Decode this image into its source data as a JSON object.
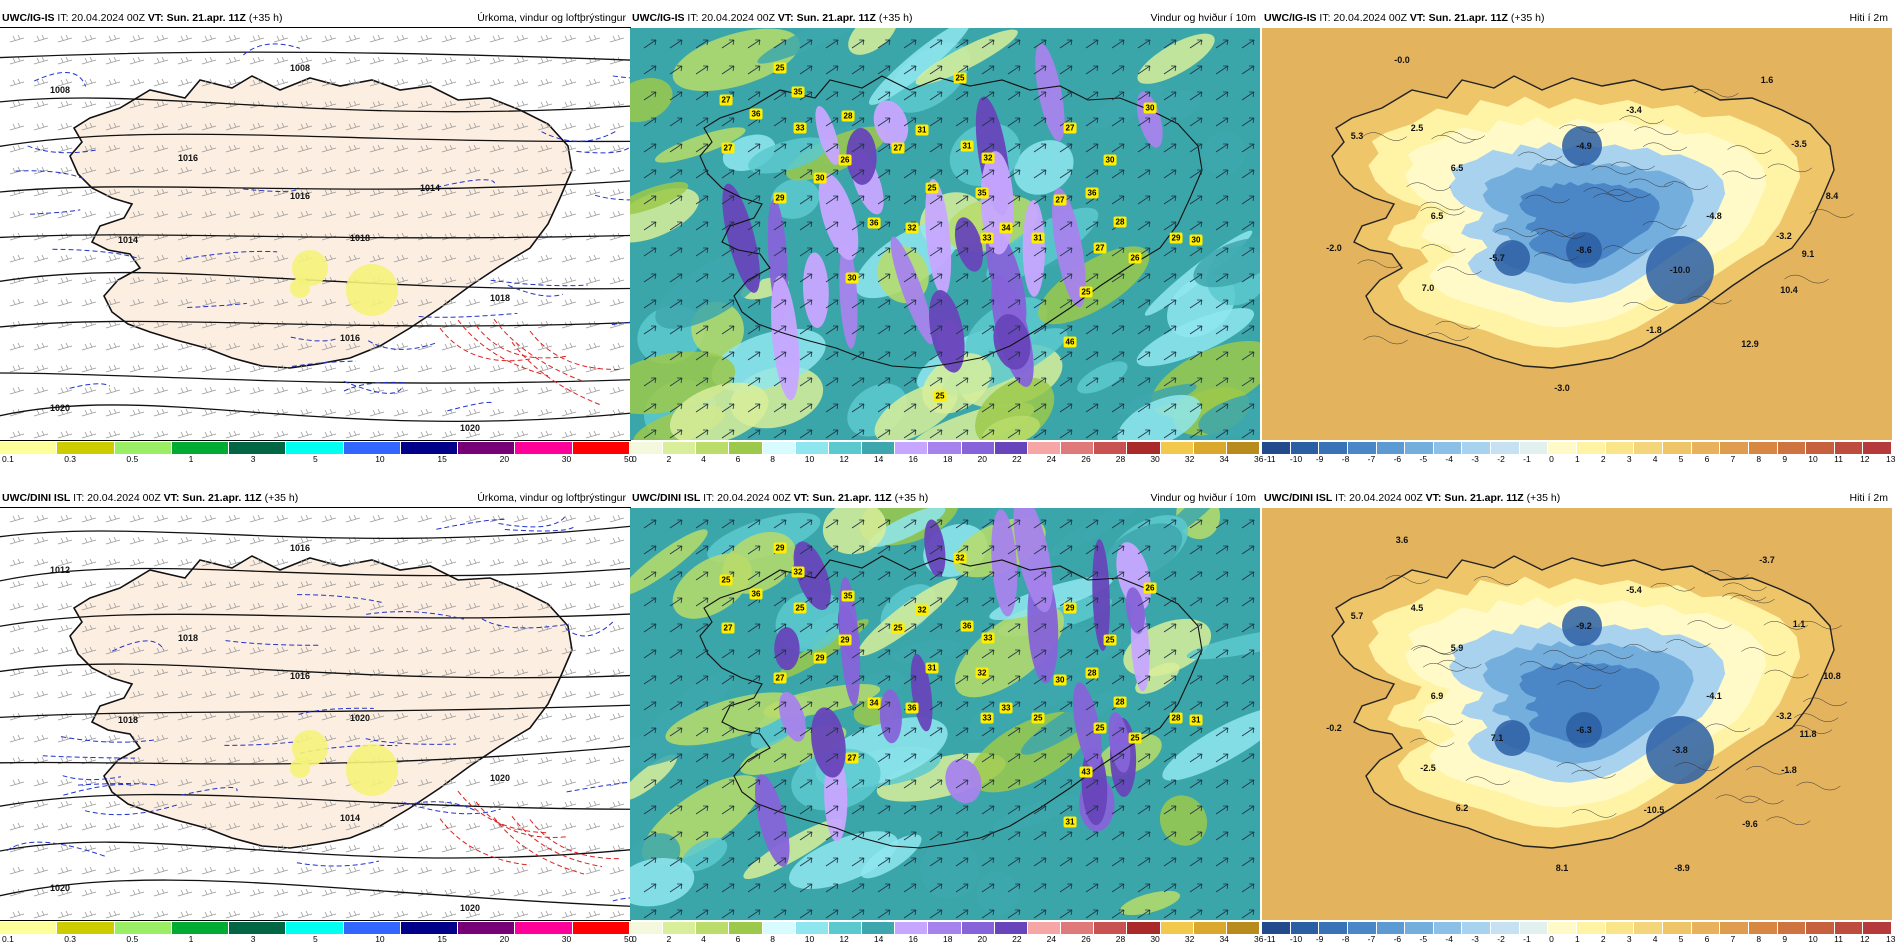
{
  "panels": [
    {
      "id": "p1",
      "model": "UWC/IG-IS",
      "it": "IT: 20.04.2024 00Z",
      "vt_label": "VT:",
      "vt": "Sun. 21.apr. 11Z",
      "lead": "(+35 h)",
      "title": "Úrkoma, vindur og loftþrýstingur",
      "kind": "precip"
    },
    {
      "id": "p2",
      "model": "UWC/IG-IS",
      "it": "IT: 20.04.2024 00Z",
      "vt_label": "VT:",
      "vt": "Sun. 21.apr. 11Z",
      "lead": "(+35 h)",
      "title": "Vindur og hviður í 10m",
      "kind": "wind"
    },
    {
      "id": "p3",
      "model": "UWC/IG-IS",
      "it": "IT: 20.04.2024 00Z",
      "vt_label": "VT:",
      "vt": "Sun. 21.apr. 11Z",
      "lead": "(+35 h)",
      "title": "Hiti í 2m",
      "kind": "temp"
    },
    {
      "id": "p4",
      "model": "UWC/DINI ISL",
      "it": "IT: 20.04.2024 00Z",
      "vt_label": "VT:",
      "vt": "Sun. 21.apr. 11Z",
      "lead": "(+35 h)",
      "title": "Úrkoma, vindur og loftþrýstingur",
      "kind": "precip"
    },
    {
      "id": "p5",
      "model": "UWC/DINI ISL",
      "it": "IT: 20.04.2024 00Z",
      "vt_label": "VT:",
      "vt": "Sun. 21.apr. 11Z",
      "lead": "(+35 h)",
      "title": "Vindur og hviður í 10m",
      "kind": "wind"
    },
    {
      "id": "p6",
      "model": "UWC/DINI ISL",
      "it": "IT: 20.04.2024 00Z",
      "vt_label": "VT:",
      "vt": "Sun. 21.apr. 11Z",
      "lead": "(+35 h)",
      "title": "Hiti í 2m",
      "kind": "temp"
    }
  ],
  "colorbars": {
    "precip": {
      "colors": [
        "#ffff99",
        "#cccc00",
        "#99ee66",
        "#00aa33",
        "#006644",
        "#00ffee",
        "#3366ff",
        "#000088",
        "#770077",
        "#ff0099",
        "#ff0000"
      ],
      "ticks": [
        "0.1",
        "0.3",
        "0.5",
        "1",
        "3",
        "5",
        "10",
        "15",
        "20",
        "30",
        "50"
      ]
    },
    "wind": {
      "colors": [
        "#f4f9dd",
        "#d8ee9a",
        "#b9dc6a",
        "#9cc94b",
        "#d7fbff",
        "#8fe6ef",
        "#5cc9cf",
        "#3da7ad",
        "#c7a6ff",
        "#a683ec",
        "#8663d9",
        "#6744b9",
        "#f7a6a6",
        "#e07a7a",
        "#c85252",
        "#aa2a2a",
        "#f2c94c",
        "#d9a82d",
        "#b88b1c"
      ],
      "ticks": [
        "0",
        "2",
        "4",
        "6",
        "8",
        "10",
        "12",
        "14",
        "16",
        "18",
        "20",
        "22",
        "24",
        "26",
        "28",
        "30",
        "32",
        "34",
        "36"
      ]
    },
    "temp": {
      "colors": [
        "#234a8c",
        "#2c5ea3",
        "#3a72b7",
        "#4b86c6",
        "#5d9ad3",
        "#74aedd",
        "#8dc0e6",
        "#a8d2ee",
        "#c6e2f2",
        "#e2f0f0",
        "#fffac7",
        "#fff3a6",
        "#fbe58a",
        "#f5d57a",
        "#efc56a",
        "#e8b15c",
        "#e09c4e",
        "#d88742",
        "#cf7440",
        "#c6603f",
        "#bd4c3f",
        "#b43a3e"
      ],
      "ticks": [
        "-11",
        "-10",
        "-9",
        "-8",
        "-7",
        "-6",
        "-5",
        "-4",
        "-3",
        "-2",
        "-1",
        "0",
        "1",
        "2",
        "3",
        "4",
        "5",
        "6",
        "7",
        "8",
        "9",
        "10",
        "11",
        "12",
        "13"
      ]
    }
  },
  "labels": {
    "p1": [
      "1008",
      "1008",
      "1014",
      "1016",
      "1018",
      "1018",
      "1020",
      "1020",
      "1016",
      "1016",
      "1014"
    ],
    "p4": [
      "1012",
      "1016",
      "1018",
      "1018",
      "1020",
      "1020",
      "1020",
      "1020",
      "1016",
      "1014"
    ],
    "p2": [
      "25",
      "27",
      "36",
      "35",
      "33",
      "28",
      "27",
      "30",
      "29",
      "26",
      "27",
      "25",
      "31",
      "31",
      "32",
      "35",
      "25",
      "34",
      "27",
      "30",
      "36",
      "32",
      "33",
      "28",
      "27",
      "30",
      "36",
      "30",
      "25",
      "29",
      "30",
      "31",
      "26",
      "27",
      "46",
      "25"
    ],
    "p5": [
      "29",
      "25",
      "36",
      "32",
      "25",
      "35",
      "27",
      "29",
      "27",
      "29",
      "25",
      "32",
      "32",
      "36",
      "33",
      "32",
      "31",
      "33",
      "29",
      "25",
      "28",
      "36",
      "33",
      "28",
      "30",
      "31",
      "34",
      "27",
      "43",
      "28",
      "26",
      "25",
      "25",
      "25",
      "31"
    ],
    "p3": [
      "-0.0",
      "5.3",
      "2.5",
      "6.5",
      "6.5",
      "-2.0",
      "7.0",
      "-5.7",
      "-8.6",
      "-4.9",
      "-3.4",
      "1.6",
      "-3.5",
      "-4.8",
      "-3.2",
      "-10.0",
      "-1.8",
      "10.4",
      "12.9",
      "9.1",
      "8.4",
      "-3.0"
    ],
    "p6": [
      "3.6",
      "5.7",
      "4.5",
      "5.9",
      "6.9",
      "-0.2",
      "-2.5",
      "7.1",
      "-6.3",
      "-9.2",
      "-5.4",
      "-3.7",
      "1.1",
      "-4.1",
      "-3.2",
      "-3.8",
      "-10.5",
      "-1.8",
      "-9.6",
      "11.8",
      "10.8",
      "8.1",
      "6.2",
      "-8.9"
    ]
  }
}
